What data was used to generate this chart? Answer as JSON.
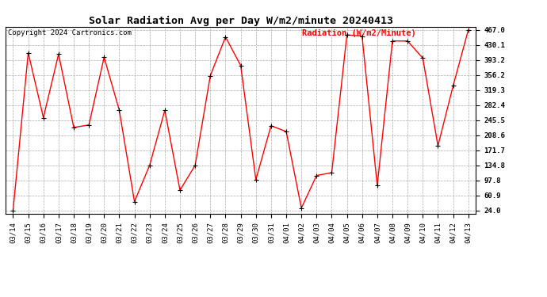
{
  "title": "Solar Radiation Avg per Day W/m2/minute 20240413",
  "copyright": "Copyright 2024 Cartronics.com",
  "legend_label": "Radiation (W/m2/Minute)",
  "dates": [
    "03/14",
    "03/15",
    "03/16",
    "03/17",
    "03/18",
    "03/19",
    "03/20",
    "03/21",
    "03/22",
    "03/23",
    "03/24",
    "03/25",
    "03/26",
    "03/27",
    "03/28",
    "03/29",
    "03/30",
    "03/31",
    "04/01",
    "04/02",
    "04/03",
    "04/04",
    "04/05",
    "04/06",
    "04/07",
    "04/08",
    "04/09",
    "04/10",
    "04/11",
    "04/12",
    "04/13"
  ],
  "values": [
    24.0,
    411.0,
    252.0,
    408.0,
    228.0,
    234.0,
    400.0,
    270.0,
    46.0,
    135.0,
    270.0,
    74.0,
    135.0,
    355.0,
    450.0,
    380.0,
    100.0,
    232.0,
    218.0,
    30.0,
    110.0,
    117.0,
    455.0,
    452.0,
    85.0,
    440.0,
    440.0,
    398.0,
    183.0,
    330.0,
    467.0
  ],
  "yticks": [
    24.0,
    60.9,
    97.8,
    134.8,
    171.7,
    208.6,
    245.5,
    282.4,
    319.3,
    356.2,
    393.2,
    430.1,
    467.0
  ],
  "ymin": 24.0,
  "ymax": 467.0,
  "line_color": "red",
  "marker_color": "black",
  "background_color": "#ffffff",
  "grid_color": "#aaaaaa",
  "title_fontsize": 9.5,
  "copyright_fontsize": 6.5,
  "legend_fontsize": 7.5,
  "tick_fontsize": 6.5
}
